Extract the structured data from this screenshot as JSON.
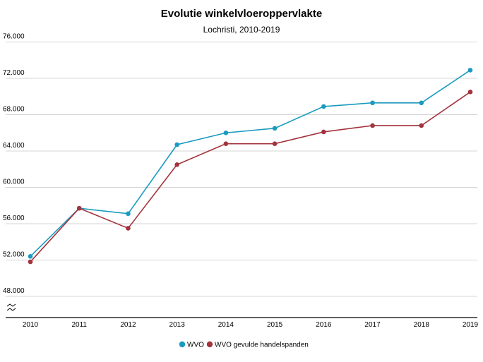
{
  "chart_data": {
    "type": "line",
    "title": "Evolutie winkelvloeroppervlakte",
    "subtitle": "Lochristi, 2010-2019",
    "xlabel": "",
    "ylabel": "",
    "categories": [
      "2010",
      "2011",
      "2012",
      "2013",
      "2014",
      "2015",
      "2016",
      "2017",
      "2018",
      "2019"
    ],
    "ylim": [
      46000,
      76000
    ],
    "yticks": [
      48000,
      52000,
      56000,
      60000,
      64000,
      68000,
      72000,
      76000
    ],
    "ytick_labels": [
      "48.000",
      "52.000",
      "56.000",
      "60.000",
      "64.000",
      "68.000",
      "72.000",
      "76.000"
    ],
    "axis_break": true,
    "grid": "horizontal",
    "legend_position": "bottom",
    "series": [
      {
        "name": "WVO",
        "color": "#1a9bbf",
        "values": [
          52400,
          57700,
          57100,
          64700,
          66000,
          66500,
          68900,
          69300,
          69300,
          72900
        ]
      },
      {
        "name": "WVO gevulde handelspanden",
        "color": "#a3333d",
        "values": [
          51800,
          57700,
          55500,
          62500,
          64800,
          64800,
          66100,
          66800,
          66800,
          70500
        ]
      }
    ]
  }
}
